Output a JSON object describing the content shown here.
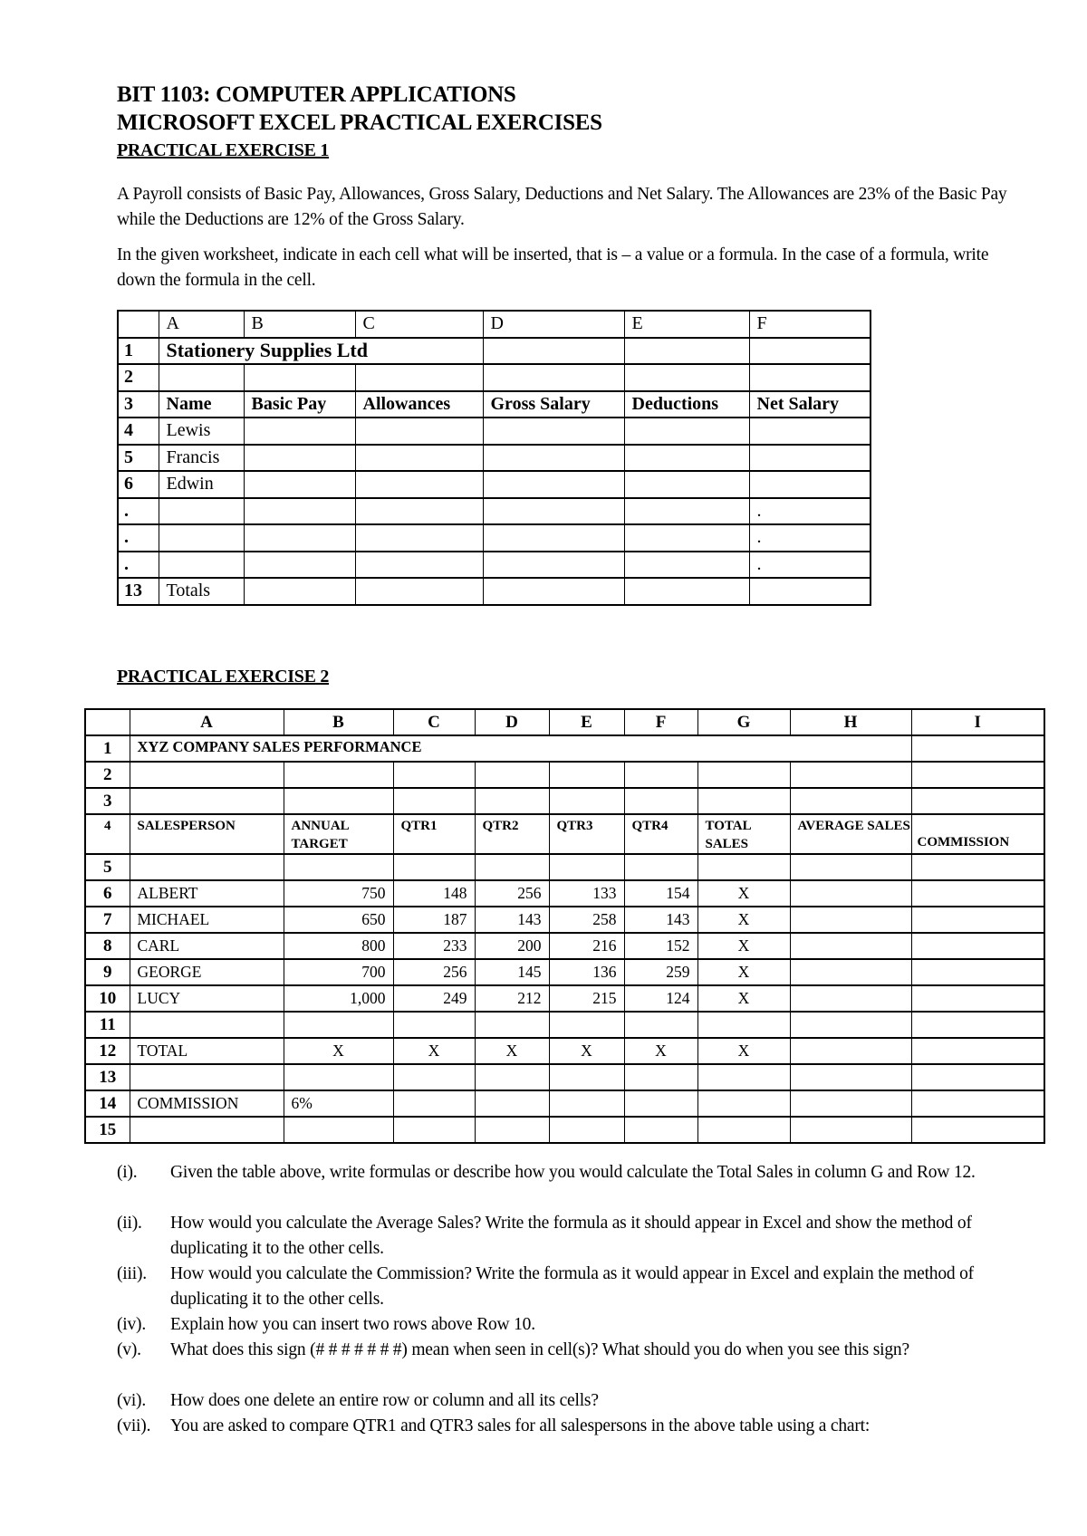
{
  "header": {
    "course": "BIT 1103: COMPUTER APPLICATIONS",
    "subtitle": "MICROSOFT EXCEL PRACTICAL EXERCISES"
  },
  "exercise1": {
    "heading": "PRACTICAL EXERCISE 1",
    "paragraph1": "A Payroll consists of Basic Pay, Allowances, Gross Salary, Deductions and Net Salary.  The Allowances are 23% of the Basic Pay while the Deductions are 12% of the Gross Salary.",
    "paragraph2": "In the given worksheet, indicate in each cell what will be inserted, that is – a value or a formula. In the case of a formula, write down the formula in the cell.",
    "table": {
      "columns": [
        "",
        "A",
        "B",
        "C",
        "D",
        "E",
        "F"
      ],
      "rows": [
        [
          "1",
          "Stationery Supplies Ltd",
          "",
          "",
          "",
          "",
          ""
        ],
        [
          "2",
          "",
          "",
          "",
          "",
          "",
          ""
        ],
        [
          "3",
          "Name",
          "Basic Pay",
          "Allowances",
          "Gross Salary",
          "Deductions",
          "Net Salary"
        ],
        [
          "4",
          "Lewis",
          "",
          "",
          "",
          "",
          ""
        ],
        [
          "5",
          "Francis",
          "",
          "",
          "",
          "",
          ""
        ],
        [
          "6",
          "Edwin",
          "",
          "",
          "",
          "",
          ""
        ],
        [
          ".",
          "",
          "",
          "",
          "",
          "",
          "."
        ],
        [
          ".",
          "",
          "",
          "",
          "",
          "",
          "."
        ],
        [
          ".",
          "",
          "",
          "",
          "",
          "",
          "."
        ],
        [
          "13",
          "Totals",
          "",
          "",
          "",
          "",
          ""
        ]
      ]
    }
  },
  "exercise2": {
    "heading": "PRACTICAL EXERCISE 2",
    "table": {
      "columns": [
        "",
        "A",
        "B",
        "C",
        "D",
        "E",
        "F",
        "G",
        "H",
        "I"
      ],
      "title": "XYZ COMPANY SALES PERFORMANCE",
      "header_row": [
        "4",
        "SALESPERSON",
        "ANNUAL TARGET",
        "QTR1",
        "QTR2",
        "QTR3",
        "QTR4",
        "TOTAL SALES",
        "AVERAGE SALES",
        "COMMISSION"
      ],
      "rows": [
        [
          "2",
          "",
          "",
          "",
          "",
          "",
          "",
          "",
          "",
          ""
        ],
        [
          "3",
          "",
          "",
          "",
          "",
          "",
          "",
          "",
          "",
          ""
        ],
        [
          "5",
          "",
          "",
          "",
          "",
          "",
          "",
          "",
          "",
          ""
        ],
        [
          "6",
          "ALBERT",
          "750",
          "148",
          "256",
          "133",
          "154",
          "X",
          "",
          ""
        ],
        [
          "7",
          "MICHAEL",
          "650",
          "187",
          "143",
          "258",
          "143",
          "X",
          "",
          ""
        ],
        [
          "8",
          "CARL",
          "800",
          "233",
          "200",
          "216",
          "152",
          "X",
          "",
          ""
        ],
        [
          "9",
          "GEORGE",
          "700",
          "256",
          "145",
          "136",
          "259",
          "X",
          "",
          ""
        ],
        [
          "10",
          "LUCY",
          "1,000",
          "249",
          "212",
          "215",
          "124",
          "X",
          "",
          ""
        ],
        [
          "11",
          "",
          "",
          "",
          "",
          "",
          "",
          "",
          "",
          ""
        ],
        [
          "12",
          "TOTAL",
          "X",
          "X",
          "X",
          "X",
          "X",
          "X",
          "",
          ""
        ],
        [
          "13",
          "",
          "",
          "",
          "",
          "",
          "",
          "",
          "",
          ""
        ],
        [
          "14",
          "COMMISSION",
          "6%",
          "",
          "",
          "",
          "",
          "",
          "",
          ""
        ],
        [
          "15",
          "",
          "",
          "",
          "",
          "",
          "",
          "",
          "",
          ""
        ]
      ]
    },
    "questions": [
      {
        "label": "(i).",
        "text": "Given the table above, write formulas or describe how you would calculate the Total Sales in column G and Row 12."
      },
      {
        "label": "(ii).",
        "text": "How would you calculate the Average Sales?  Write the formula as it should appear in Excel and show the method of duplicating it to the other cells."
      },
      {
        "label": "(iii).",
        "text": "How would you calculate the Commission?  Write the formula as it would appear in Excel and explain the method of duplicating it to the other cells."
      },
      {
        "label": "(iv).",
        "text": "Explain how you can insert two rows above Row 10."
      },
      {
        "label": "(v).",
        "text": " What does this sign (# # # # # # #) mean when seen in cell(s)?  What should you do when you see this sign?"
      },
      {
        "label": "(vi).",
        "text": "How does one delete an entire row or column and all its cells?"
      },
      {
        "label": "(vii).",
        "text": "You are asked to compare QTR1 and QTR3 sales for all salespersons in the above table using a chart:"
      }
    ]
  }
}
